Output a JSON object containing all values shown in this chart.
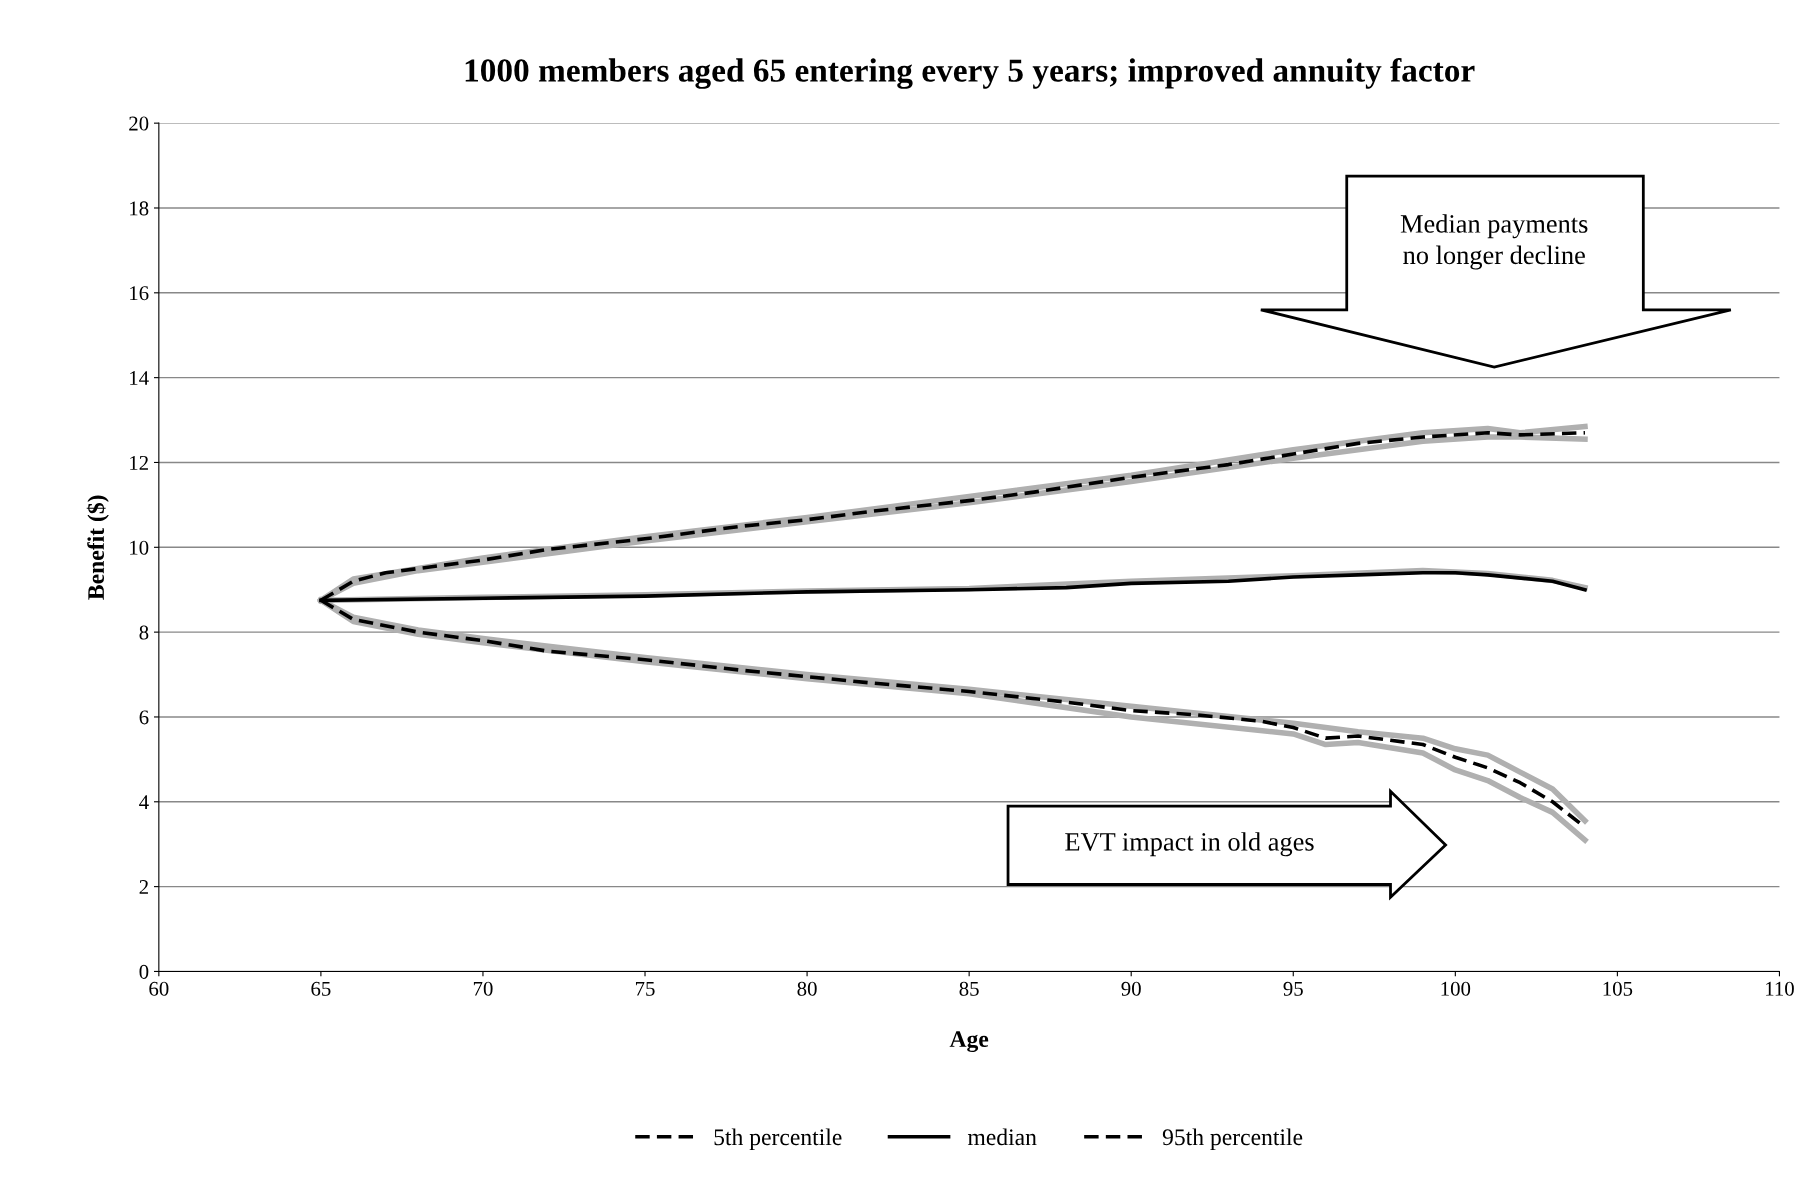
{
  "chart_data": {
    "type": "line",
    "title": "1000 members aged 65 entering every 5 years; improved annuity factor",
    "xlabel": "Age",
    "ylabel": "Benefit ($)",
    "xlim": [
      60,
      110
    ],
    "xticks": [
      60,
      65,
      70,
      75,
      80,
      85,
      90,
      95,
      100,
      105,
      110
    ],
    "ylim": [
      0,
      20
    ],
    "yticks": [
      0,
      2,
      4,
      6,
      8,
      10,
      12,
      14,
      16,
      18,
      20
    ],
    "grid": "y",
    "legend": "bottom",
    "annotations": [
      "Median payments\nno longer decline",
      "EVT impact in old ages"
    ],
    "series": [
      {
        "color": "#b0b0b0",
        "x": [
          65,
          66,
          68,
          70,
          75,
          80,
          85,
          90,
          95,
          99,
          101,
          102,
          104
        ],
        "values": [
          8.75,
          9.25,
          9.5,
          9.75,
          10.25,
          10.7,
          11.2,
          11.7,
          12.3,
          12.7,
          12.8,
          12.7,
          12.85
        ]
      },
      {
        "color": "#b0b0b0",
        "x": [
          65,
          66,
          68,
          70,
          75,
          80,
          85,
          90,
          95,
          99,
          101,
          102,
          104
        ],
        "values": [
          8.75,
          9.15,
          9.45,
          9.65,
          10.15,
          10.6,
          11.05,
          11.55,
          12.1,
          12.5,
          12.6,
          12.6,
          12.55
        ]
      },
      {
        "color": "#b0b0b0",
        "x": [
          65,
          70,
          75,
          80,
          85,
          90,
          95,
          99,
          101,
          103,
          104
        ],
        "values": [
          8.75,
          8.82,
          8.88,
          8.97,
          9.03,
          9.2,
          9.33,
          9.45,
          9.38,
          9.22,
          9.05
        ]
      },
      {
        "color": "#b0b0b0",
        "x": [
          65,
          66,
          68,
          70,
          75,
          80,
          85,
          90,
          95,
          97,
          99,
          100,
          101,
          102,
          103,
          104
        ],
        "values": [
          8.75,
          8.35,
          8.05,
          7.85,
          7.4,
          7.0,
          6.65,
          6.25,
          5.85,
          5.65,
          5.5,
          5.25,
          5.1,
          4.7,
          4.3,
          3.55
        ]
      },
      {
        "color": "#b0b0b0",
        "x": [
          65,
          66,
          68,
          70,
          75,
          80,
          85,
          90,
          95,
          96,
          97,
          99,
          100,
          101,
          102,
          103,
          104
        ],
        "values": [
          8.75,
          8.25,
          7.95,
          7.75,
          7.3,
          6.9,
          6.55,
          6.0,
          5.6,
          5.35,
          5.4,
          5.15,
          4.75,
          4.5,
          4.1,
          3.75,
          3.1
        ]
      },
      {
        "name": "5th percentile",
        "color": "#000000",
        "line_style": "dashed",
        "x": [
          65,
          66,
          68,
          70,
          72,
          75,
          78,
          80,
          82,
          85,
          88,
          90,
          92,
          94,
          95,
          96,
          97,
          98,
          99,
          100,
          101,
          102,
          103,
          104
        ],
        "values": [
          8.75,
          8.3,
          8.0,
          7.8,
          7.55,
          7.35,
          7.1,
          6.95,
          6.8,
          6.6,
          6.35,
          6.15,
          6.05,
          5.9,
          5.75,
          5.5,
          5.55,
          5.45,
          5.35,
          5.05,
          4.8,
          4.45,
          4.0,
          3.4
        ]
      },
      {
        "name": "median",
        "color": "#000000",
        "line_style": "solid",
        "x": [
          65,
          70,
          75,
          80,
          85,
          88,
          90,
          93,
          95,
          97,
          99,
          100,
          101,
          103,
          104
        ],
        "values": [
          8.75,
          8.8,
          8.85,
          8.95,
          9.0,
          9.05,
          9.15,
          9.2,
          9.3,
          9.35,
          9.4,
          9.4,
          9.35,
          9.2,
          9.0
        ]
      },
      {
        "name": "95th percentile",
        "color": "#000000",
        "line_style": "dashed",
        "x": [
          65,
          66,
          67,
          68,
          70,
          72,
          75,
          78,
          80,
          82,
          85,
          87,
          90,
          93,
          95,
          97,
          99,
          101,
          102,
          104
        ],
        "values": [
          8.75,
          9.2,
          9.4,
          9.5,
          9.7,
          9.95,
          10.2,
          10.5,
          10.65,
          10.85,
          11.1,
          11.3,
          11.65,
          11.95,
          12.2,
          12.45,
          12.6,
          12.7,
          12.65,
          12.7
        ]
      }
    ]
  }
}
